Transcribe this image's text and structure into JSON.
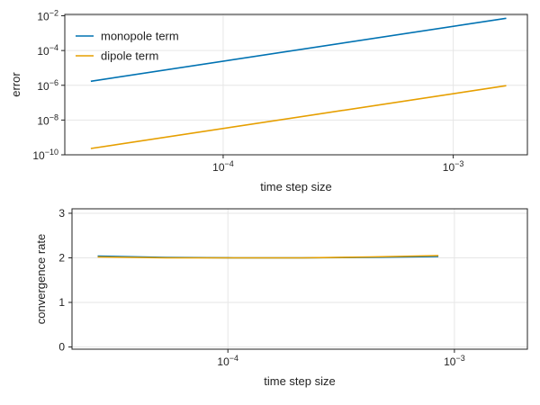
{
  "chart_data": [
    {
      "type": "line",
      "xlabel": "time step size",
      "ylabel": "error",
      "xscale": "log",
      "yscale": "log",
      "xlim": [
        2.05e-05,
        0.0021
      ],
      "ylim": [
        1e-10,
        0.012
      ],
      "xticks": [
        {
          "value": 0.0001,
          "base": "10",
          "exp": "−4"
        },
        {
          "value": 0.001,
          "base": "10",
          "exp": "−3"
        }
      ],
      "yticks": [
        {
          "value": 1e-10,
          "base": "10",
          "exp": "−10"
        },
        {
          "value": 1e-08,
          "base": "10",
          "exp": "−8"
        },
        {
          "value": 1e-06,
          "base": "10",
          "exp": "−6"
        },
        {
          "value": 0.0001,
          "base": "10",
          "exp": "−4"
        },
        {
          "value": 0.01,
          "base": "10",
          "exp": "−2"
        }
      ],
      "grid": true,
      "legend_position": "top-left",
      "series": [
        {
          "name": "monopole term",
          "color": "#0072b2",
          "x": [
            2.66e-05,
            0.0017
          ],
          "y": [
            1.7e-06,
            0.0072
          ]
        },
        {
          "name": "dipole term",
          "color": "#e69f00",
          "x": [
            2.66e-05,
            0.0017
          ],
          "y": [
            2.3e-10,
            9.5e-07
          ]
        }
      ]
    },
    {
      "type": "line",
      "xlabel": "time step size",
      "ylabel": "convergence rate",
      "xscale": "log",
      "yscale": "linear",
      "xlim": [
        2.05e-05,
        0.0021
      ],
      "ylim": [
        -0.05,
        3.1
      ],
      "xticks": [
        {
          "value": 0.0001,
          "base": "10",
          "exp": "−4"
        },
        {
          "value": 0.001,
          "base": "10",
          "exp": "−3"
        }
      ],
      "yticks": [
        {
          "value": 0,
          "label": "0"
        },
        {
          "value": 1,
          "label": "1"
        },
        {
          "value": 2,
          "label": "2"
        },
        {
          "value": 3,
          "label": "3"
        }
      ],
      "grid": true,
      "series": [
        {
          "color": "#0072b2",
          "x": [
            2.66e-05,
            5.32e-05,
            0.000106,
            0.000213,
            0.000425,
            0.00085
          ],
          "y": [
            2.04,
            2.01,
            2.0,
            2.0,
            2.01,
            2.03
          ]
        },
        {
          "color": "#e69f00",
          "x": [
            2.66e-05,
            5.32e-05,
            0.000106,
            0.000213,
            0.000425,
            0.00085
          ],
          "y": [
            2.02,
            2.0,
            2.0,
            2.0,
            2.02,
            2.05
          ]
        }
      ]
    }
  ]
}
